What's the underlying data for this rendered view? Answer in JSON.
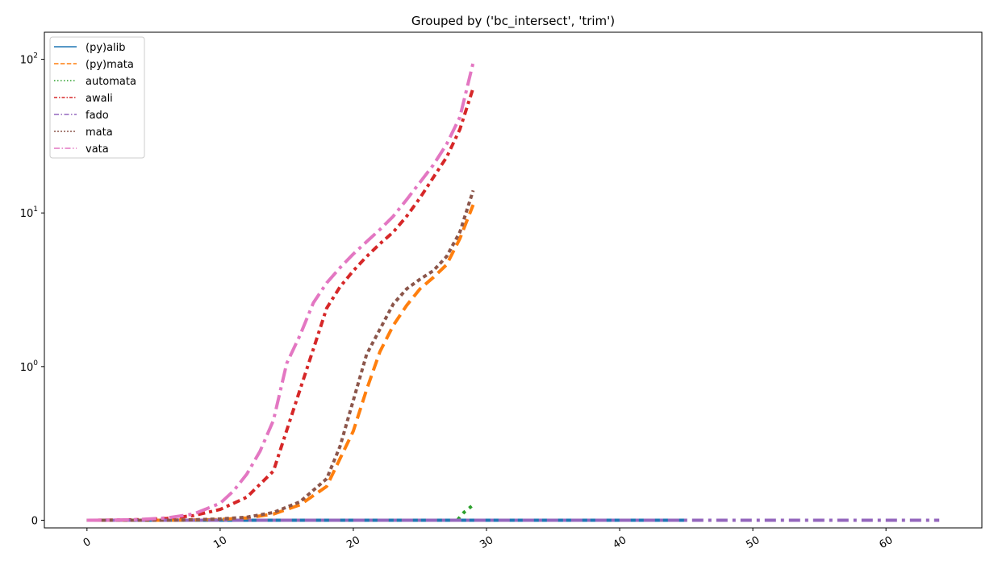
{
  "chart_data": {
    "type": "line",
    "title": "Grouped by ('bc_intersect', 'trim')",
    "xlabel": "",
    "ylabel": "",
    "xlim": [
      -3.2,
      67.2
    ],
    "ylim": [
      -0.05,
      150
    ],
    "yscale": "symlog",
    "x_ticks": [
      0,
      10,
      20,
      30,
      40,
      50,
      60
    ],
    "x_tick_labels": [
      "0",
      "10",
      "20",
      "30",
      "40",
      "50",
      "60"
    ],
    "y_ticks": [
      {
        "value": 0,
        "base": "0",
        "exp": ""
      },
      {
        "value": 1,
        "base": "10",
        "exp": "0"
      },
      {
        "value": 10,
        "base": "10",
        "exp": "1"
      },
      {
        "value": 100,
        "base": "10",
        "exp": "2"
      }
    ],
    "grid": false,
    "legend_position": "upper-left",
    "series": [
      {
        "name": "(py)alib",
        "color": "#1f77b4",
        "dash": "solid",
        "x": [
          0,
          5,
          10,
          15,
          20,
          25,
          30,
          35,
          40,
          45
        ],
        "y": [
          0,
          0,
          0,
          0,
          0,
          0,
          0,
          0,
          0,
          0
        ]
      },
      {
        "name": "(py)mata",
        "color": "#ff7f0e",
        "dash": "dashed",
        "x": [
          0,
          2,
          4,
          6,
          8,
          10,
          12,
          14,
          16,
          18,
          20,
          21,
          22,
          23,
          24,
          25,
          26,
          27,
          28,
          29
        ],
        "y": [
          0,
          0,
          0,
          0,
          0.002,
          0.005,
          0.015,
          0.04,
          0.1,
          0.22,
          0.58,
          0.85,
          1.25,
          1.85,
          2.5,
          3.2,
          3.8,
          4.6,
          6.8,
          11.3
        ]
      },
      {
        "name": "automata",
        "color": "#2ca02c",
        "dash": "dotted",
        "x": [
          0,
          5,
          10,
          15,
          20,
          25,
          27.8,
          28.3,
          29
        ],
        "y": [
          0,
          0,
          0,
          0,
          0,
          0,
          0,
          0.05,
          0.1
        ]
      },
      {
        "name": "awali",
        "color": "#d62728",
        "dash": "dashdot-short",
        "x": [
          0,
          2,
          4,
          6,
          8,
          10,
          12,
          14,
          16,
          17,
          18,
          19,
          20,
          21,
          22,
          23,
          24,
          25,
          26,
          27,
          28,
          29
        ],
        "y": [
          0,
          0.001,
          0.004,
          0.012,
          0.03,
          0.07,
          0.15,
          0.32,
          0.85,
          1.3,
          2.4,
          3.3,
          4.2,
          5.2,
          6.3,
          7.5,
          9.5,
          12.5,
          17,
          23,
          35,
          65
        ]
      },
      {
        "name": "fado",
        "color": "#9467bd",
        "dash": "dashdot",
        "x": [
          0,
          10,
          20,
          30,
          40,
          50,
          60,
          64
        ],
        "y": [
          0,
          0,
          0,
          0,
          0,
          0,
          0,
          0
        ]
      },
      {
        "name": "mata",
        "color": "#8c564b",
        "dash": "dotted-dense",
        "x": [
          0,
          2,
          4,
          6,
          8,
          10,
          12,
          14,
          16,
          18,
          19,
          20,
          21,
          22,
          23,
          24,
          25,
          26,
          27,
          28,
          29
        ],
        "y": [
          0,
          0,
          0,
          0,
          0.003,
          0.008,
          0.02,
          0.05,
          0.12,
          0.27,
          0.48,
          0.78,
          1.2,
          1.75,
          2.55,
          3.2,
          3.7,
          4.2,
          5.2,
          7.5,
          14
        ]
      },
      {
        "name": "vata",
        "color": "#e377c2",
        "dash": "dashdot-long",
        "x": [
          0,
          2,
          4,
          6,
          8,
          10,
          11,
          12,
          13,
          14,
          15,
          16,
          17,
          18,
          19,
          20,
          21,
          22,
          23,
          24,
          25,
          26,
          27,
          28,
          29
        ],
        "y": [
          0,
          0.001,
          0.005,
          0.015,
          0.04,
          0.11,
          0.19,
          0.3,
          0.45,
          0.65,
          1.05,
          1.6,
          2.6,
          3.5,
          4.4,
          5.4,
          6.5,
          7.8,
          9.5,
          12.2,
          15.8,
          20.5,
          28,
          42,
          95
        ]
      }
    ]
  }
}
